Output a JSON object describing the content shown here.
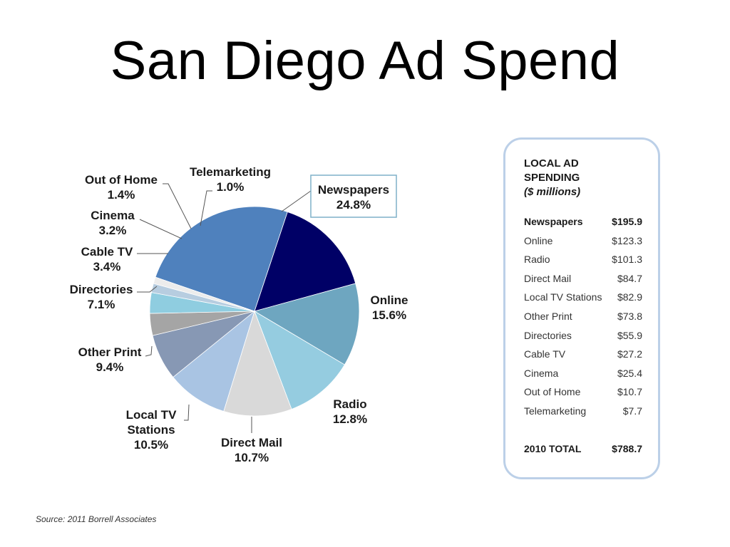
{
  "slide": {
    "title": "San Diego Ad Spend",
    "source": "Source:  2011 Borrell Associates"
  },
  "chart_data": {
    "type": "pie",
    "title": "",
    "slices": [
      {
        "label": "Newspapers",
        "value": 24.8,
        "display": "24.8%",
        "color": "#4f81bd"
      },
      {
        "label": "Online",
        "value": 15.6,
        "display": "15.6%",
        "color": "#000066"
      },
      {
        "label": "Radio",
        "value": 12.8,
        "display": "12.8%",
        "color": "#6ea6c0"
      },
      {
        "label": "Direct Mail",
        "value": 10.7,
        "display": "10.7%",
        "color": "#95cce0"
      },
      {
        "label": "Local TV Stations",
        "value": 10.5,
        "display": "10.5%",
        "color": "#d9d9d9"
      },
      {
        "label": "Other Print",
        "value": 9.4,
        "display": "9.4%",
        "color": "#a9c4e3"
      },
      {
        "label": "Directories",
        "value": 7.1,
        "display": "7.1%",
        "color": "#8798b4"
      },
      {
        "label": "Cable TV",
        "value": 3.4,
        "display": "3.4%",
        "color": "#a5a5a5"
      },
      {
        "label": "Cinema",
        "value": 3.2,
        "display": "3.2%",
        "color": "#8fcde0"
      },
      {
        "label": "Out of Home",
        "value": 1.4,
        "display": "1.4%",
        "color": "#b7cde0"
      },
      {
        "label": "Telemarketing",
        "value": 1.0,
        "display": "1.0%",
        "color": "#ececec"
      }
    ]
  },
  "spend_table": {
    "heading": [
      "LOCAL AD",
      "SPENDING"
    ],
    "units": "($ millions)",
    "rows": [
      {
        "name": "Newspapers",
        "value": "$195.9",
        "bold": true
      },
      {
        "name": "Online",
        "value": "$123.3"
      },
      {
        "name": "Radio",
        "value": "$101.3"
      },
      {
        "name": "Direct Mail",
        "value": "$84.7"
      },
      {
        "name": "Local TV Stations",
        "value": "$82.9"
      },
      {
        "name": "Other Print",
        "value": "$73.8"
      },
      {
        "name": "Directories",
        "value": "$55.9"
      },
      {
        "name": "Cable TV",
        "value": "$27.2"
      },
      {
        "name": "Cinema",
        "value": "$25.4"
      },
      {
        "name": "Out of Home",
        "value": "$10.7"
      },
      {
        "name": "Telemarketing",
        "value": "$7.7"
      }
    ],
    "total": {
      "name": "2010 TOTAL",
      "value": "$788.7"
    }
  }
}
